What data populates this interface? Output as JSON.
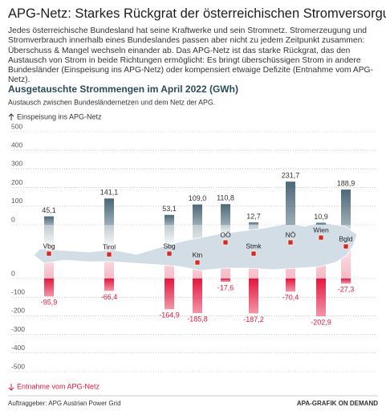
{
  "header": {
    "title": "APG-Netz: Starkes Rückgrat der österreichischen Stromversorgung",
    "text": "Jedes österreichische Bundesland hat seine Kraftwerke und sein Stromnetz. Stromerzeugung und Stromverbrauch innerhalb eines Bundeslandes passen aber nicht zu jedem Zeitpunkt zusammen: Überschuss & Mangel wechseln einander ab. Das APG-Netz ist das starke Rückgrat, das den Austausch von Strom in beide Richtungen ermöglicht: Es bringt überschüssigen Strom in andere Bundesländer (Einspeisung ins APG-Netz) oder kompensiert etwaige Defizite (Entnahme vom APG-Netz)."
  },
  "chart_data": {
    "type": "bar",
    "title": "Ausgetauschte Strommengen im April 2022 (GWh)",
    "subtitle": "Austausch zwischen Bundesländernetzen und dem Netz der APG.",
    "categories": [
      "Vbg",
      "Tirol",
      "Sbg",
      "Ktn",
      "OÖ",
      "Stmk",
      "NÖ",
      "Wien",
      "Bgld"
    ],
    "series": [
      {
        "name": "Einspeisung ins APG-Netz",
        "color": "#4b6878",
        "values": [
          45.1,
          141.1,
          53.1,
          109.0,
          110.8,
          12.7,
          231.7,
          10.9,
          188.9
        ],
        "value_labels": [
          "45,1",
          "141,1",
          "53,1",
          "109,0",
          "110,8",
          "12,7",
          "231,7",
          "10,9",
          "188,9"
        ]
      },
      {
        "name": "Entnahme vom APG-Netz",
        "color": "#e3173e",
        "axis": "y2",
        "values": [
          -95.9,
          -66.4,
          -164.9,
          -185.8,
          -17.6,
          -187.2,
          -70.4,
          -202.9,
          -27.3
        ],
        "value_labels": [
          "-95,9",
          "-66,4",
          "-164,9",
          "-185,8",
          "-17,6",
          "-187,2",
          "-70,4",
          "-202,9",
          "-27,3"
        ]
      }
    ],
    "ylim": [
      0,
      500
    ],
    "yticks": [
      0,
      100,
      200,
      300,
      400,
      500
    ],
    "y2lim": [
      -500,
      0
    ],
    "y2ticks": [
      -500,
      -400,
      -300,
      -200,
      -100,
      0
    ],
    "grid": true
  },
  "footer": {
    "left": "Auftraggeber: APG Austrian Power Grid",
    "right": "APA-GRAFIK ON DEMAND"
  }
}
